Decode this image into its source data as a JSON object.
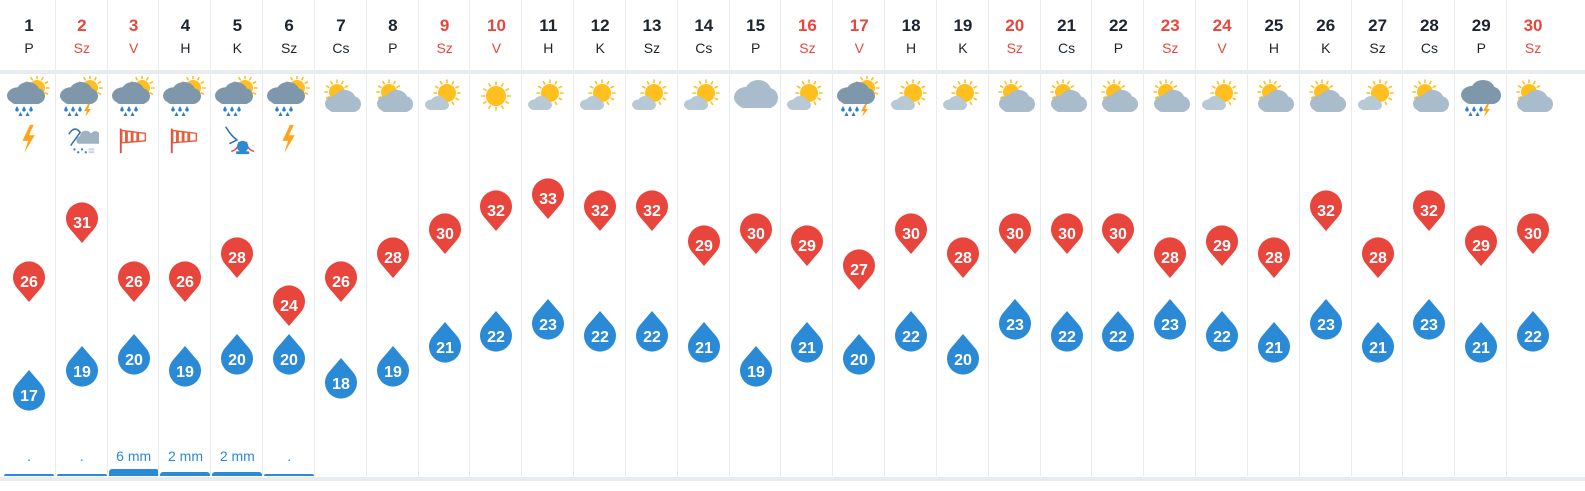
{
  "days": [
    {
      "num": "1",
      "name": "P",
      "weekend": false,
      "icon": "rain-sun",
      "warn": "lightning-icon",
      "max": "26",
      "min": "17",
      "precip": ".",
      "pbar": 0.0
    },
    {
      "num": "2",
      "name": "Sz",
      "weekend": true,
      "icon": "rain-sun-storm",
      "warn": "hail-storm-icon",
      "max": "31",
      "min": "19",
      "precip": ".",
      "pbar": 0.0
    },
    {
      "num": "3",
      "name": "V",
      "weekend": true,
      "icon": "rain-sun",
      "warn": "windsock-icon",
      "max": "26",
      "min": "20",
      "precip": "6 mm",
      "pbar": 0.6
    },
    {
      "num": "4",
      "name": "H",
      "weekend": false,
      "icon": "rain-sun",
      "warn": "windsock-icon",
      "max": "26",
      "min": "19",
      "precip": "2 mm",
      "pbar": 0.3
    },
    {
      "num": "5",
      "name": "K",
      "weekend": false,
      "icon": "rain-sun",
      "warn": "lightning-warning-icon",
      "max": "28",
      "min": "20",
      "precip": "2 mm",
      "pbar": 0.3
    },
    {
      "num": "6",
      "name": "Sz",
      "weekend": false,
      "icon": "rain-sun",
      "warn": "lightning-icon",
      "max": "24",
      "min": "20",
      "precip": ".",
      "pbar": 0.0
    },
    {
      "num": "7",
      "name": "Cs",
      "weekend": false,
      "icon": "partly-cloudy",
      "warn": "",
      "max": "26",
      "min": "18",
      "precip": "",
      "pbar": 0
    },
    {
      "num": "8",
      "name": "P",
      "weekend": false,
      "icon": "partly-cloudy",
      "warn": "",
      "max": "28",
      "min": "19",
      "precip": "",
      "pbar": 0
    },
    {
      "num": "9",
      "name": "Sz",
      "weekend": true,
      "icon": "mostly-sunny",
      "warn": "",
      "max": "30",
      "min": "21",
      "precip": "",
      "pbar": 0
    },
    {
      "num": "10",
      "name": "V",
      "weekend": true,
      "icon": "sunny",
      "warn": "",
      "max": "32",
      "min": "22",
      "precip": "",
      "pbar": 0
    },
    {
      "num": "11",
      "name": "H",
      "weekend": false,
      "icon": "mostly-sunny",
      "warn": "",
      "max": "33",
      "min": "23",
      "precip": "",
      "pbar": 0
    },
    {
      "num": "12",
      "name": "K",
      "weekend": false,
      "icon": "mostly-sunny",
      "warn": "",
      "max": "32",
      "min": "22",
      "precip": "",
      "pbar": 0
    },
    {
      "num": "13",
      "name": "Sz",
      "weekend": false,
      "icon": "mostly-sunny",
      "warn": "",
      "max": "32",
      "min": "22",
      "precip": "",
      "pbar": 0
    },
    {
      "num": "14",
      "name": "Cs",
      "weekend": false,
      "icon": "mostly-sunny",
      "warn": "",
      "max": "29",
      "min": "21",
      "precip": "",
      "pbar": 0
    },
    {
      "num": "15",
      "name": "P",
      "weekend": false,
      "icon": "cloudy",
      "warn": "",
      "max": "30",
      "min": "19",
      "precip": "",
      "pbar": 0
    },
    {
      "num": "16",
      "name": "Sz",
      "weekend": true,
      "icon": "mostly-sunny",
      "warn": "",
      "max": "29",
      "min": "21",
      "precip": "",
      "pbar": 0
    },
    {
      "num": "17",
      "name": "V",
      "weekend": true,
      "icon": "rain-sun-storm",
      "warn": "",
      "max": "27",
      "min": "20",
      "precip": "",
      "pbar": 0
    },
    {
      "num": "18",
      "name": "H",
      "weekend": false,
      "icon": "mostly-sunny",
      "warn": "",
      "max": "30",
      "min": "22",
      "precip": "",
      "pbar": 0
    },
    {
      "num": "19",
      "name": "K",
      "weekend": false,
      "icon": "mostly-sunny",
      "warn": "",
      "max": "28",
      "min": "20",
      "precip": "",
      "pbar": 0
    },
    {
      "num": "20",
      "name": "Sz",
      "weekend": true,
      "icon": "partly-cloudy",
      "warn": "",
      "max": "30",
      "min": "23",
      "precip": "",
      "pbar": 0
    },
    {
      "num": "21",
      "name": "Cs",
      "weekend": false,
      "icon": "partly-cloudy",
      "warn": "",
      "max": "30",
      "min": "22",
      "precip": "",
      "pbar": 0
    },
    {
      "num": "22",
      "name": "P",
      "weekend": false,
      "icon": "partly-cloudy",
      "warn": "",
      "max": "30",
      "min": "22",
      "precip": "",
      "pbar": 0
    },
    {
      "num": "23",
      "name": "Sz",
      "weekend": true,
      "icon": "partly-cloudy",
      "warn": "",
      "max": "28",
      "min": "23",
      "precip": "",
      "pbar": 0
    },
    {
      "num": "24",
      "name": "V",
      "weekend": true,
      "icon": "mostly-sunny",
      "warn": "",
      "max": "29",
      "min": "22",
      "precip": "",
      "pbar": 0
    },
    {
      "num": "25",
      "name": "H",
      "weekend": false,
      "icon": "partly-cloudy",
      "warn": "",
      "max": "28",
      "min": "21",
      "precip": "",
      "pbar": 0
    },
    {
      "num": "26",
      "name": "K",
      "weekend": false,
      "icon": "partly-cloudy",
      "warn": "",
      "max": "32",
      "min": "23",
      "precip": "",
      "pbar": 0
    },
    {
      "num": "27",
      "name": "Sz",
      "weekend": false,
      "icon": "mostly-sunny",
      "warn": "",
      "max": "28",
      "min": "21",
      "precip": "",
      "pbar": 0
    },
    {
      "num": "28",
      "name": "Cs",
      "weekend": false,
      "icon": "partly-cloudy",
      "warn": "",
      "max": "32",
      "min": "23",
      "precip": "",
      "pbar": 0
    },
    {
      "num": "29",
      "name": "P",
      "weekend": false,
      "icon": "rain-storm",
      "warn": "",
      "max": "29",
      "min": "21",
      "precip": "",
      "pbar": 0
    },
    {
      "num": "30",
      "name": "Sz",
      "weekend": true,
      "icon": "partly-cloudy",
      "warn": "",
      "max": "30",
      "min": "22",
      "precip": "",
      "pbar": 0
    }
  ],
  "colors": {
    "max_pin": "#e8453c",
    "min_drop": "#2b8ad6",
    "weekend_text": "#e8453c",
    "day_text": "#1c2430",
    "sun": "#ffbf1f",
    "cloud": "#a9bccb",
    "cloud_dark": "#7e97ab",
    "rain": "#2f7fcf",
    "bolt": "#ffa41a"
  }
}
